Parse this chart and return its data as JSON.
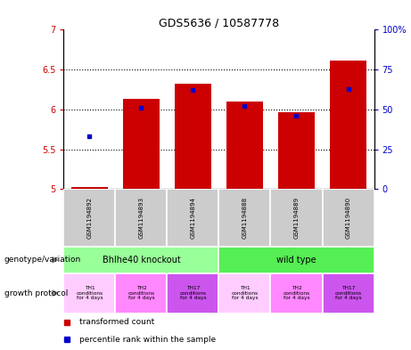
{
  "title": "GDS5636 / 10587778",
  "samples": [
    "GSM1194892",
    "GSM1194893",
    "GSM1194894",
    "GSM1194888",
    "GSM1194889",
    "GSM1194890"
  ],
  "transformed_counts": [
    5.02,
    6.13,
    6.32,
    6.1,
    5.96,
    6.61
  ],
  "percentile_ranks": [
    33,
    51,
    62,
    52,
    46,
    63
  ],
  "ylim_left": [
    5.0,
    7.0
  ],
  "ylim_right": [
    0,
    100
  ],
  "yticks_left": [
    5.0,
    5.5,
    6.0,
    6.5,
    7.0
  ],
  "yticks_right": [
    0,
    25,
    50,
    75,
    100
  ],
  "ytick_labels_left": [
    "5",
    "5.5",
    "6",
    "6.5",
    "7"
  ],
  "ytick_labels_right": [
    "0",
    "25",
    "50",
    "75",
    "100%"
  ],
  "bar_bottom": 5.0,
  "bar_color": "#cc0000",
  "dot_color": "#0000cc",
  "genotype_groups": [
    {
      "label": "Bhlhe40 knockout",
      "start": 0,
      "end": 3,
      "color": "#99ff99"
    },
    {
      "label": "wild type",
      "start": 3,
      "end": 6,
      "color": "#55ee55"
    }
  ],
  "growth_protocol_labels": [
    "TH1\nconditions\nfor 4 days",
    "TH2\nconditions\nfor 4 days",
    "TH17\nconditions\nfor 4 days",
    "TH1\nconditions\nfor 4 days",
    "TH2\nconditions\nfor 4 days",
    "TH17\nconditions\nfor 4 days"
  ],
  "growth_protocol_colors": [
    "#ffccff",
    "#ff88ff",
    "#cc55ee",
    "#ffccff",
    "#ff88ff",
    "#cc55ee"
  ],
  "sample_bg_color": "#cccccc",
  "legend_red_label": "transformed count",
  "legend_blue_label": "percentile rank within the sample",
  "left_label_genotype": "genotype/variation",
  "left_label_growth": "growth protocol",
  "bar_width": 0.7
}
